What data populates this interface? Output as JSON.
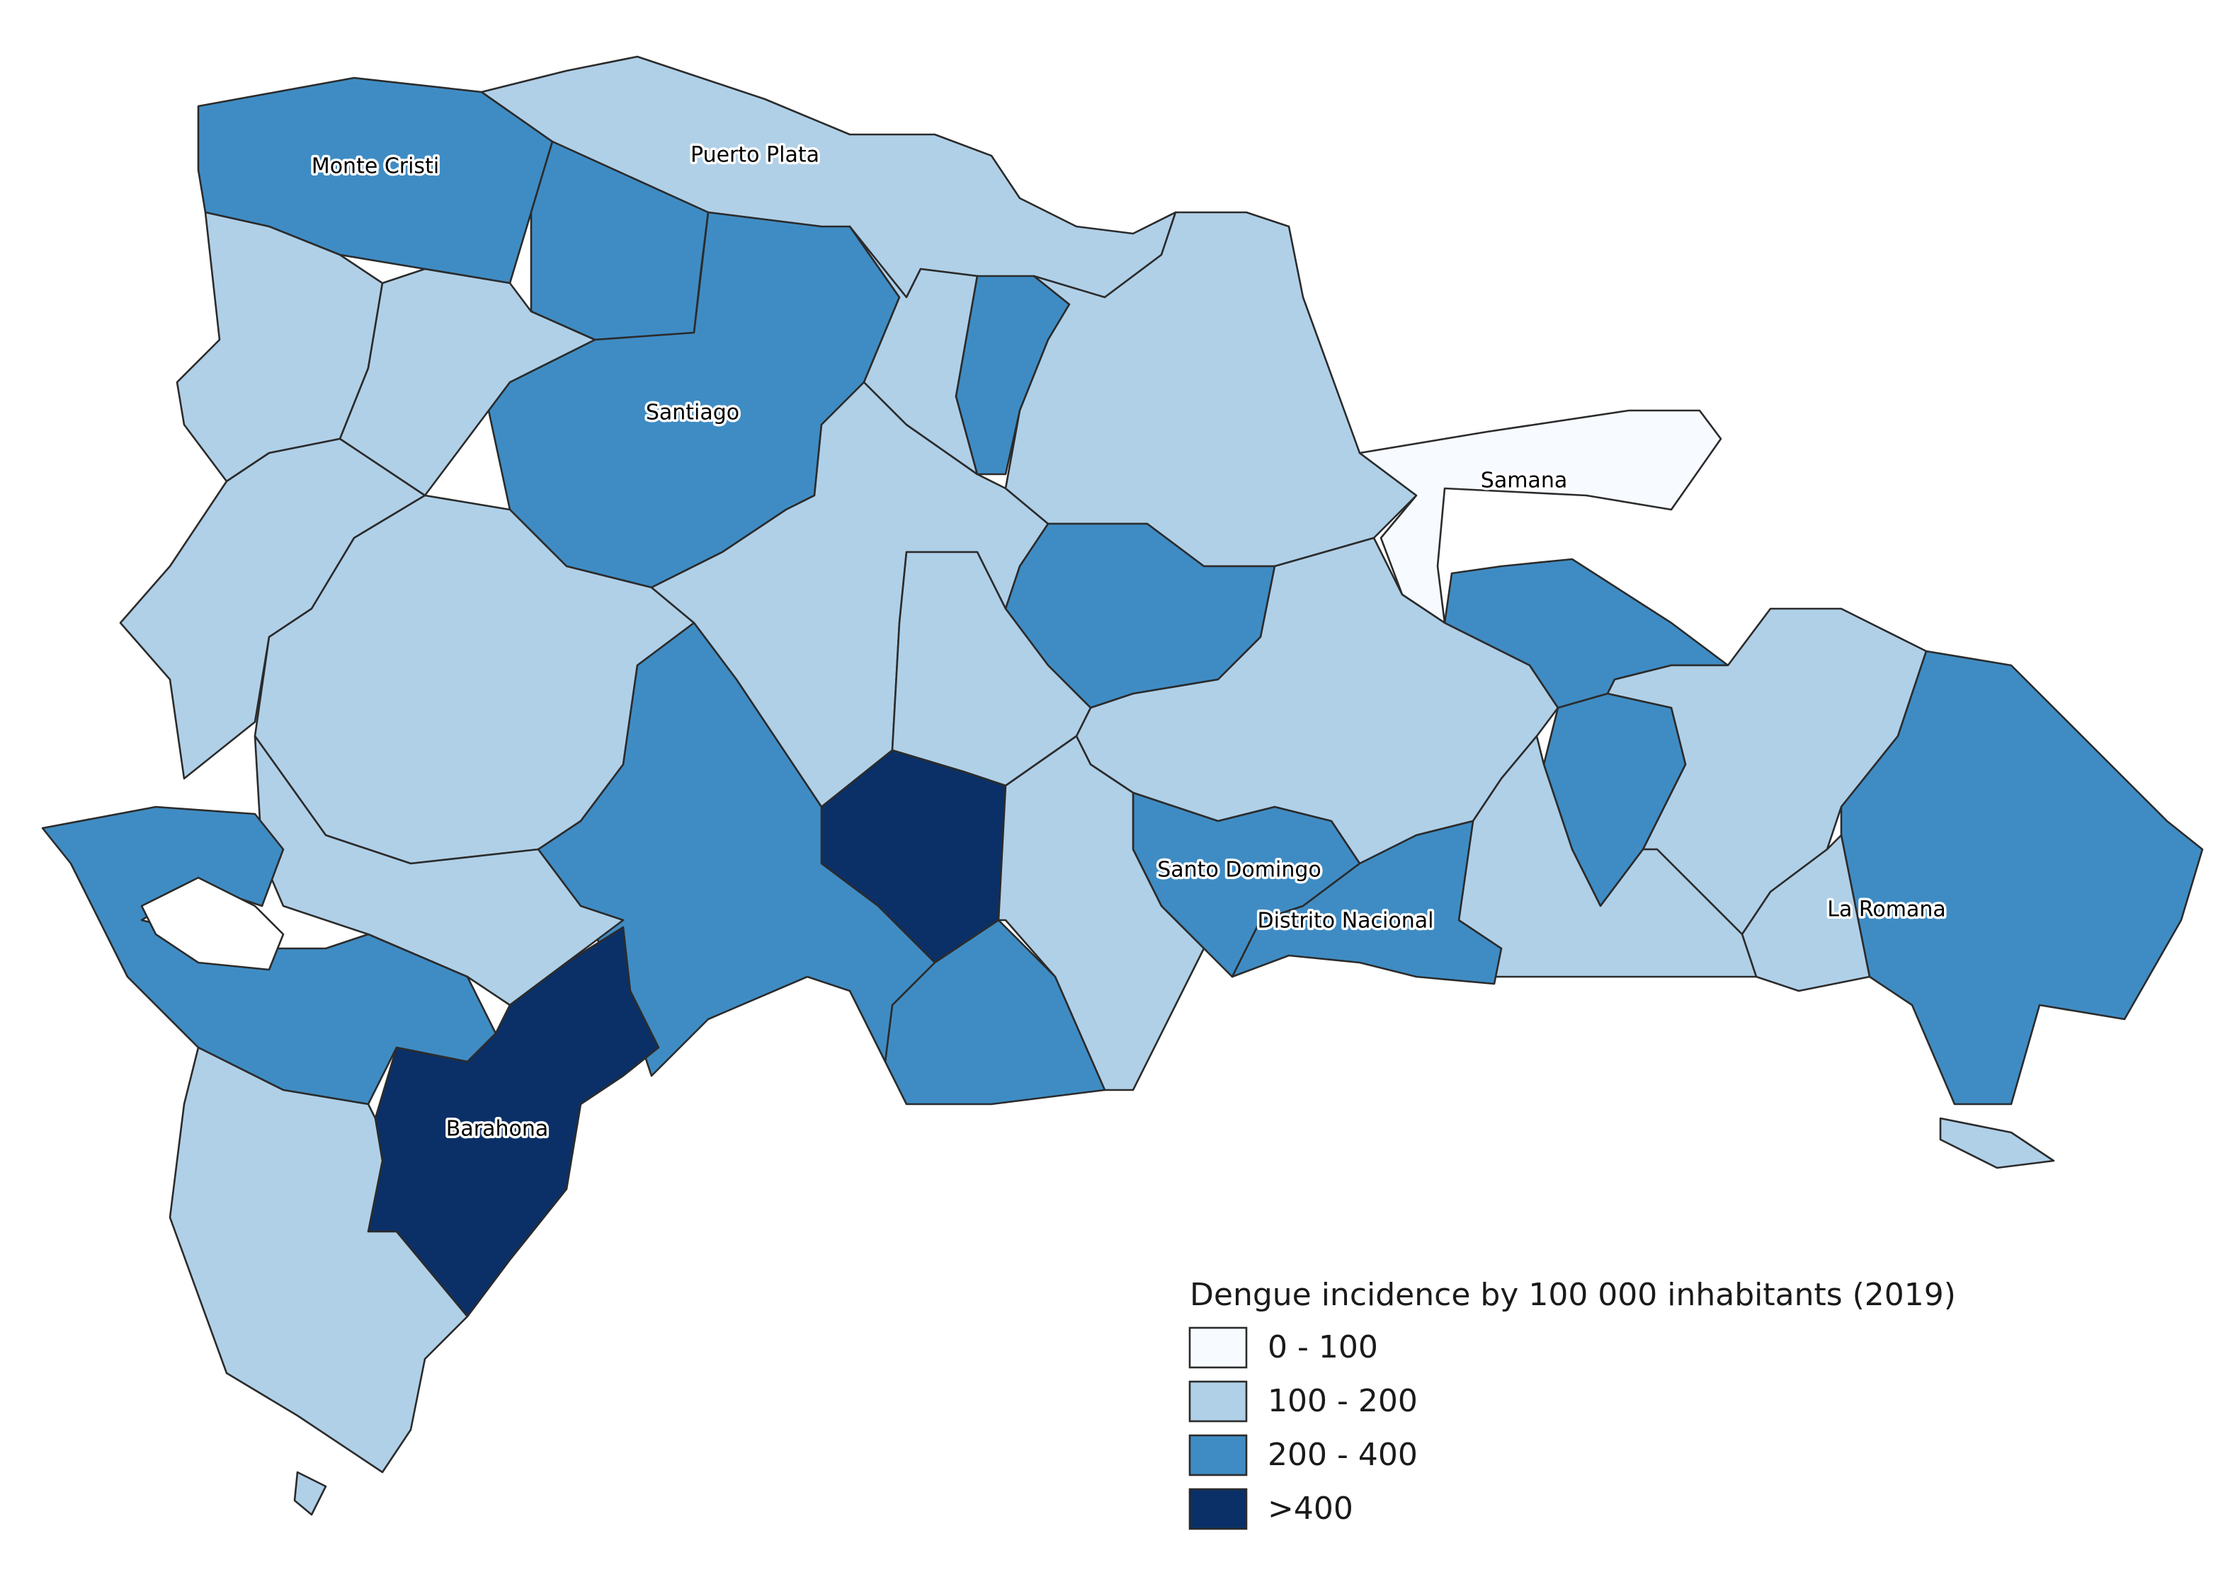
{
  "map": {
    "regions": [
      {
        "label": "Monte Cristi",
        "color": "#3f8cc4"
      },
      {
        "label": "Puerto Plata",
        "color": "#b0d0e8"
      },
      {
        "label": "Santiago",
        "color": "#3f8cc4"
      },
      {
        "label": "Samana",
        "color": "#f7fbff"
      },
      {
        "label": "Santo Domingo",
        "color": "#3f8cc4"
      },
      {
        "label": "Distrito Nacional",
        "color": "#3f8cc4"
      },
      {
        "label": "La Romana",
        "color": "#b0d0e8"
      },
      {
        "label": "Barahona",
        "color": "#0b3068"
      }
    ],
    "legend": {
      "title": "Dengue incidence by 100 000 inhabitants (2019)",
      "items": [
        {
          "label": "0 - 100",
          "color": "#f7fbff"
        },
        {
          "label": "100 - 200",
          "color": "#b0d0e8"
        },
        {
          "label": "200 - 400",
          "color": "#3f8cc4"
        },
        {
          "label": ">400",
          "color": "#0b3068"
        }
      ]
    }
  }
}
